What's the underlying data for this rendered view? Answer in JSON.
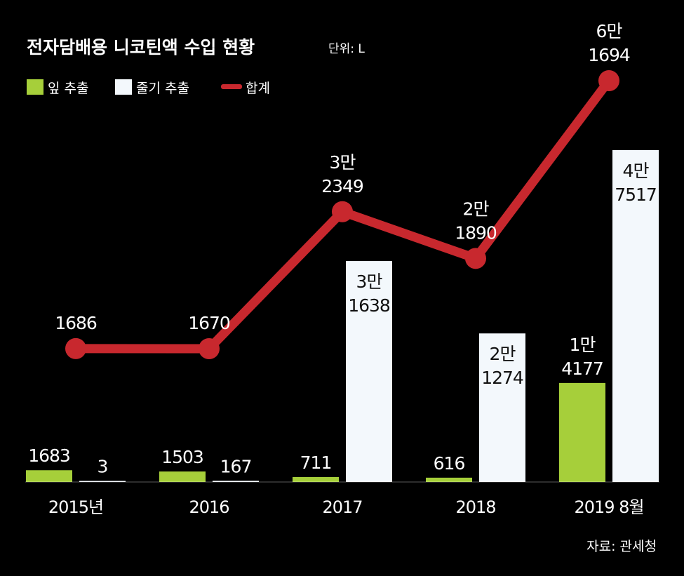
{
  "colors": {
    "background": "#000000",
    "leaf": "#a6cf3a",
    "stem": "#f3f8fc",
    "total": "#c8282e",
    "text": "#ffffff"
  },
  "chart_data": {
    "type": "bar",
    "title": "전자담배용 니코틴액 수입 현황",
    "unit": "단위: L",
    "categories": [
      "2015년",
      "2016",
      "2017",
      "2018",
      "2019 8월"
    ],
    "series": [
      {
        "name": "잎 추출",
        "kind": "bar",
        "color": "#a6cf3a",
        "values": [
          1683,
          1503,
          711,
          616,
          14177
        ],
        "labels": [
          [
            "1683"
          ],
          [
            "1503"
          ],
          [
            "711"
          ],
          [
            "616"
          ],
          [
            "1만",
            "4177"
          ]
        ]
      },
      {
        "name": "줄기 추출",
        "kind": "bar",
        "color": "#f3f8fc",
        "values": [
          3,
          167,
          31638,
          21274,
          47517
        ],
        "labels": [
          [
            "3"
          ],
          [
            "167"
          ],
          [
            "3만",
            "1638"
          ],
          [
            "2만",
            "1274"
          ],
          [
            "4만",
            "7517"
          ]
        ]
      },
      {
        "name": "합계",
        "kind": "line",
        "color": "#c8282e",
        "values": [
          1686,
          1670,
          32349,
          21890,
          61694
        ],
        "labels": [
          [
            "1686"
          ],
          [
            "1670"
          ],
          [
            "3만",
            "2349"
          ],
          [
            "2만",
            "1890"
          ],
          [
            "6만",
            "1694"
          ]
        ]
      }
    ],
    "legend": "top-left",
    "grid": false,
    "source": "자료: 관세청"
  }
}
